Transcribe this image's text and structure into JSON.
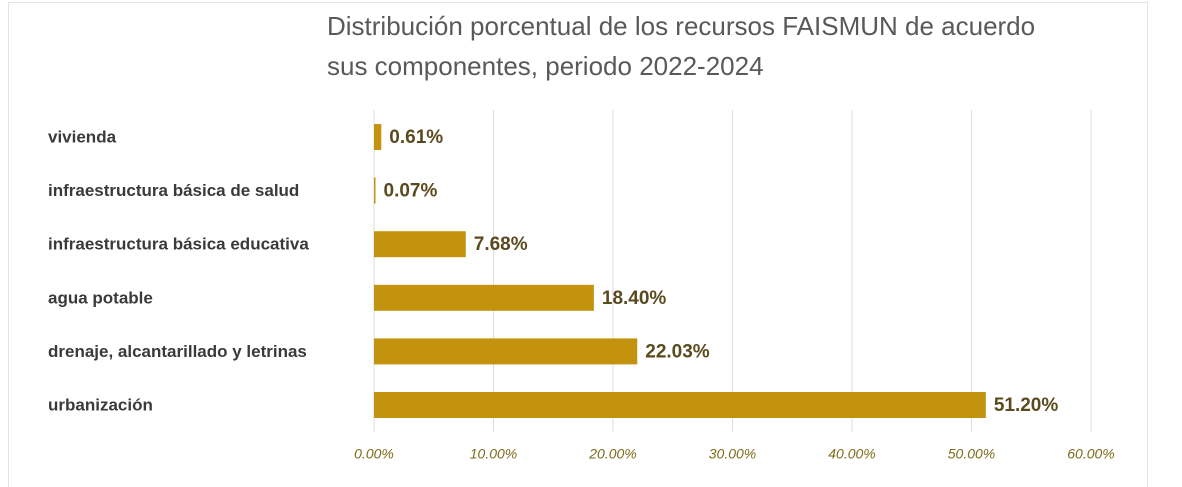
{
  "chart_data": {
    "type": "bar",
    "orientation": "horizontal",
    "title": [
      "Distribución porcentual de los recursos FAISMUN de acuerdo",
      "sus componentes, periodo 2022-2024"
    ],
    "categories": [
      "vivienda",
      "infraestructura básica de salud",
      "infraestructura básica educativa",
      "agua potable",
      "drenaje, alcantarillado y letrinas",
      "urbanización"
    ],
    "values": [
      0.61,
      0.07,
      7.68,
      18.4,
      22.03,
      51.2
    ],
    "value_labels": [
      "0.61%",
      "0.07%",
      "7.68%",
      "18.40%",
      "22.03%",
      "51.20%"
    ],
    "color": "#c3930f",
    "xlim": [
      0,
      60
    ],
    "xticks": [
      {
        "value": 0,
        "label": "0.00%"
      },
      {
        "value": 10,
        "label": "10.00%"
      },
      {
        "value": 20,
        "label": "20.00%"
      },
      {
        "value": 30,
        "label": "30.00%"
      },
      {
        "value": 40,
        "label": "40.00%"
      },
      {
        "value": 50,
        "label": "50.00%"
      },
      {
        "value": 60,
        "label": "60.00%"
      }
    ],
    "grid": true
  }
}
